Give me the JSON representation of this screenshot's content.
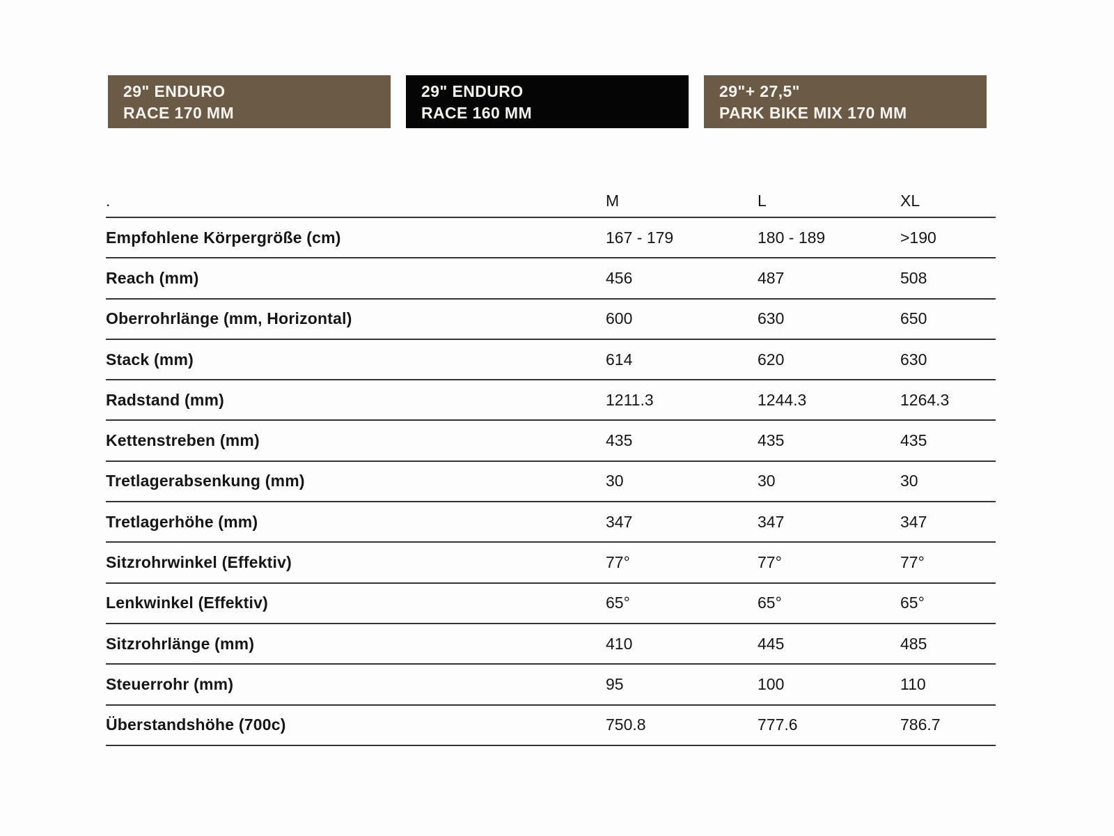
{
  "tabs": [
    {
      "line1": "29\" ENDURO",
      "line2": "RACE 170 MM",
      "state": "inactive"
    },
    {
      "line1": "29\" ENDURO",
      "line2": "RACE 160 MM",
      "state": "active"
    },
    {
      "line1": "29\"+ 27,5\"",
      "line2": "PARK BIKE MIX 170 MM",
      "state": "inactive"
    }
  ],
  "colors": {
    "tab_inactive_bg": "#6a5a46",
    "tab_active_bg": "#050505",
    "tab_text": "#f7f4ef",
    "table_text": "#161616",
    "separator_line": "#333333",
    "background": "#fdfdfd"
  },
  "table": {
    "corner_label": ".",
    "columns": [
      "M",
      "L",
      "XL"
    ],
    "rows": [
      {
        "label": "Empfohlene Körpergröße (cm)",
        "values": [
          "167 - 179",
          "180 - 189",
          ">190"
        ]
      },
      {
        "label": "Reach (mm)",
        "values": [
          "456",
          "487",
          "508"
        ]
      },
      {
        "label": "Oberrohrlänge (mm, Horizontal)",
        "values": [
          "600",
          "630",
          "650"
        ]
      },
      {
        "label": "Stack (mm)",
        "values": [
          "614",
          "620",
          "630"
        ]
      },
      {
        "label": "Radstand (mm)",
        "values": [
          "1211.3",
          "1244.3",
          "1264.3"
        ]
      },
      {
        "label": "Kettenstreben (mm)",
        "values": [
          "435",
          "435",
          "435"
        ]
      },
      {
        "label": "Tretlagerabsenkung (mm)",
        "values": [
          "30",
          "30",
          "30"
        ]
      },
      {
        "label": "Tretlagerhöhe (mm)",
        "values": [
          "347",
          "347",
          "347"
        ]
      },
      {
        "label": "Sitzrohrwinkel (Effektiv)",
        "values": [
          "77°",
          "77°",
          "77°"
        ]
      },
      {
        "label": "Lenkwinkel (Effektiv)",
        "values": [
          "65°",
          "65°",
          "65°"
        ]
      },
      {
        "label": "Sitzrohrlänge (mm)",
        "values": [
          "410",
          "445",
          "485"
        ]
      },
      {
        "label": "Steuerrohr (mm)",
        "values": [
          "95",
          "100",
          "110"
        ]
      },
      {
        "label": "Überstandshöhe (700c)",
        "values": [
          "750.8",
          "777.6",
          "786.7"
        ]
      }
    ]
  }
}
